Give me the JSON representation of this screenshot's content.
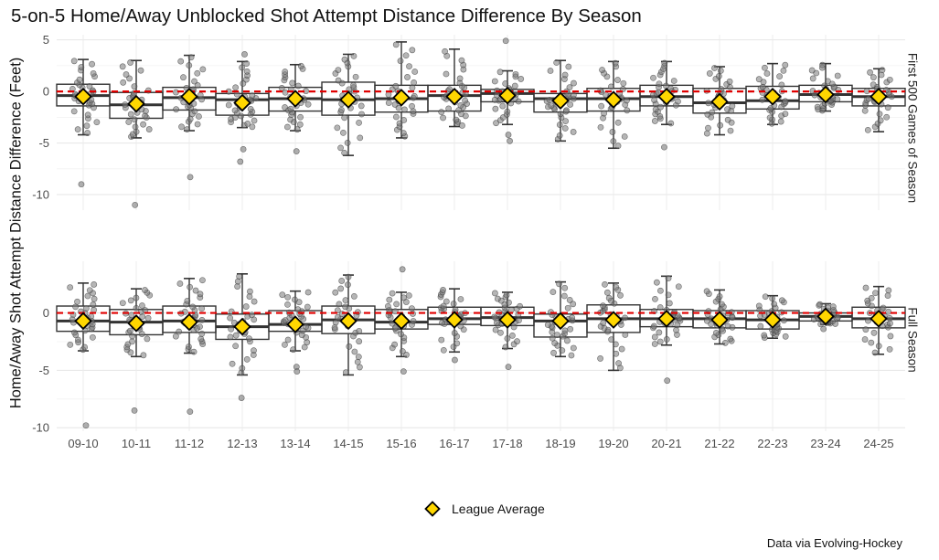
{
  "chart_data": {
    "type": "boxplot",
    "title": "5-on-5 Home/Away Unblocked Shot Attempt Distance Difference By Season",
    "ylabel": "Home/Away Shot Attempt Distance Difference (Feet)",
    "xlabel": "",
    "caption": "Data via Evolving-Hockey",
    "legend": {
      "label": "League Average",
      "marker": "diamond",
      "color": "#FFD700",
      "position": "bottom-center"
    },
    "reference_line": {
      "y": 0,
      "color": "#e00000",
      "style": "dashed"
    },
    "categories": [
      "09-10",
      "10-11",
      "11-12",
      "12-13",
      "13-14",
      "14-15",
      "15-16",
      "16-17",
      "17-18",
      "18-19",
      "19-20",
      "20-21",
      "21-22",
      "22-23",
      "23-24",
      "24-25"
    ],
    "panels": [
      {
        "name": "First 500 Games of Season",
        "ylim": [
          -11.5,
          5.5
        ],
        "yticks": [
          5,
          0,
          -5,
          -10
        ],
        "boxes": [
          {
            "q1": -1.4,
            "median": -0.4,
            "q3": 0.7,
            "low": -4.2,
            "high": 3.1,
            "outliers": [
              -9.0
            ]
          },
          {
            "q1": -2.6,
            "median": -1.3,
            "q3": -0.1,
            "low": -4.5,
            "high": 3.0,
            "outliers": [
              -11.0
            ]
          },
          {
            "q1": -1.8,
            "median": -0.6,
            "q3": 0.4,
            "low": -3.8,
            "high": 3.5,
            "outliers": [
              -8.3
            ]
          },
          {
            "q1": -2.3,
            "median": -0.8,
            "q3": -0.2,
            "low": -3.5,
            "high": 2.9,
            "outliers": [
              3.6,
              -5.6,
              -6.8
            ]
          },
          {
            "q1": -1.9,
            "median": -0.7,
            "q3": 0.4,
            "low": -3.8,
            "high": 2.6,
            "outliers": [
              -5.8
            ]
          },
          {
            "q1": -2.3,
            "median": -0.8,
            "q3": 0.9,
            "low": -6.2,
            "high": 3.6,
            "outliers": []
          },
          {
            "q1": -2.0,
            "median": -0.7,
            "q3": 0.6,
            "low": -4.5,
            "high": 4.8,
            "outliers": []
          },
          {
            "q1": -1.9,
            "median": -0.4,
            "q3": 0.6,
            "low": -3.4,
            "high": 4.1,
            "outliers": []
          },
          {
            "q1": -1.0,
            "median": -0.2,
            "q3": 0.2,
            "low": -3.2,
            "high": 2.0,
            "outliers": [
              4.9,
              -4.2,
              -4.8
            ]
          },
          {
            "q1": -2.0,
            "median": -0.7,
            "q3": -0.2,
            "low": -4.8,
            "high": 3.0,
            "outliers": []
          },
          {
            "q1": -1.9,
            "median": -0.7,
            "q3": 0.3,
            "low": -5.5,
            "high": 2.9,
            "outliers": []
          },
          {
            "q1": -1.4,
            "median": -0.5,
            "q3": 0.6,
            "low": -3.2,
            "high": 2.9,
            "outliers": [
              -5.4
            ]
          },
          {
            "q1": -2.1,
            "median": -1.1,
            "q3": 0.3,
            "low": -4.2,
            "high": 2.4,
            "outliers": []
          },
          {
            "q1": -1.7,
            "median": -0.9,
            "q3": 0.5,
            "low": -3.2,
            "high": 2.7,
            "outliers": []
          },
          {
            "q1": -1.0,
            "median": -0.3,
            "q3": 0.6,
            "low": -1.9,
            "high": 2.7,
            "outliers": []
          },
          {
            "q1": -1.4,
            "median": -0.5,
            "q3": 0.3,
            "low": -3.9,
            "high": 2.2,
            "outliers": []
          }
        ],
        "league_average": [
          -0.5,
          -1.2,
          -0.5,
          -1.1,
          -0.7,
          -0.8,
          -0.6,
          -0.5,
          -0.4,
          -0.9,
          -0.8,
          -0.5,
          -1.0,
          -0.5,
          -0.3,
          -0.5
        ]
      },
      {
        "name": "Full Season",
        "ylim": [
          -10.3,
          4.5
        ],
        "yticks": [
          0,
          -5,
          -10
        ],
        "boxes": [
          {
            "q1": -1.6,
            "median": -0.7,
            "q3": 0.6,
            "low": -3.3,
            "high": 2.6,
            "outliers": [
              -9.8
            ]
          },
          {
            "q1": -1.9,
            "median": -0.8,
            "q3": 0.3,
            "low": -3.8,
            "high": 2.1,
            "outliers": [
              -8.5
            ]
          },
          {
            "q1": -1.7,
            "median": -0.7,
            "q3": 0.6,
            "low": -3.5,
            "high": 3.0,
            "outliers": [
              -8.6
            ]
          },
          {
            "q1": -2.3,
            "median": -1.2,
            "q3": -0.1,
            "low": -5.4,
            "high": 3.4,
            "outliers": [
              -7.4
            ]
          },
          {
            "q1": -1.6,
            "median": -1.0,
            "q3": 0.2,
            "low": -3.3,
            "high": 1.9,
            "outliers": [
              -4.7,
              -5.1
            ]
          },
          {
            "q1": -1.8,
            "median": -0.6,
            "q3": 0.6,
            "low": -5.4,
            "high": 3.3,
            "outliers": []
          },
          {
            "q1": -1.4,
            "median": -0.8,
            "q3": 0.3,
            "low": -3.8,
            "high": 1.8,
            "outliers": [
              3.8,
              -5.1
            ]
          },
          {
            "q1": -1.0,
            "median": -0.5,
            "q3": 0.5,
            "low": -3.4,
            "high": 2.1,
            "outliers": [
              -4.1
            ]
          },
          {
            "q1": -1.1,
            "median": -0.4,
            "q3": 0.5,
            "low": -3.1,
            "high": 1.8,
            "outliers": [
              -4.7
            ]
          },
          {
            "q1": -2.1,
            "median": -0.7,
            "q3": -0.1,
            "low": -3.8,
            "high": 2.7,
            "outliers": []
          },
          {
            "q1": -1.7,
            "median": -0.5,
            "q3": 0.7,
            "low": -5.0,
            "high": 2.6,
            "outliers": []
          },
          {
            "q1": -1.2,
            "median": -0.5,
            "q3": 0.3,
            "low": -2.8,
            "high": 3.2,
            "outliers": [
              -5.9
            ]
          },
          {
            "q1": -1.3,
            "median": -0.5,
            "q3": 0.2,
            "low": -2.7,
            "high": 2.0,
            "outliers": []
          },
          {
            "q1": -1.4,
            "median": -0.6,
            "q3": 0.2,
            "low": -2.2,
            "high": 1.5,
            "outliers": []
          },
          {
            "q1": -0.7,
            "median": -0.3,
            "q3": 0.0,
            "low": -1.0,
            "high": 0.8,
            "outliers": [
              -1.4
            ]
          },
          {
            "q1": -1.3,
            "median": -0.5,
            "q3": 0.5,
            "low": -3.6,
            "high": 2.3,
            "outliers": []
          }
        ],
        "league_average": [
          -0.7,
          -0.9,
          -0.8,
          -1.2,
          -1.0,
          -0.7,
          -0.7,
          -0.6,
          -0.6,
          -0.7,
          -0.6,
          -0.5,
          -0.6,
          -0.6,
          -0.3,
          -0.5
        ]
      }
    ]
  }
}
